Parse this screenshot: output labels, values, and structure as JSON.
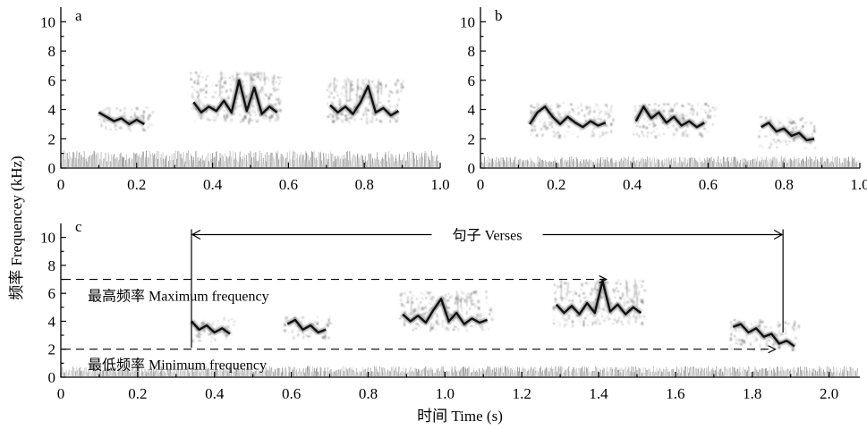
{
  "chart_data": [
    {
      "panel": "a",
      "type": "spectrogram",
      "xlim": [
        0,
        1.0
      ],
      "ylim": [
        0,
        11
      ],
      "x_ticks": [
        "0",
        "0.2",
        "0.4",
        "0.6",
        "0.8",
        "1.0"
      ],
      "y_ticks": [
        "0",
        "2",
        "4",
        "6",
        "8",
        "10"
      ],
      "noise_band_khz": [
        0,
        1.2
      ],
      "notes": [
        {
          "t": [
            0.1,
            0.24
          ],
          "f": [
            2.6,
            4.2
          ],
          "contour": [
            [
              0.1,
              3.8
            ],
            [
              0.12,
              3.5
            ],
            [
              0.14,
              3.2
            ],
            [
              0.16,
              3.4
            ],
            [
              0.18,
              3.0
            ],
            [
              0.2,
              3.3
            ],
            [
              0.22,
              3.0
            ]
          ]
        },
        {
          "t": [
            0.34,
            0.58
          ],
          "f": [
            3.2,
            6.6
          ],
          "contour": [
            [
              0.35,
              4.5
            ],
            [
              0.37,
              3.8
            ],
            [
              0.39,
              4.2
            ],
            [
              0.41,
              3.9
            ],
            [
              0.43,
              4.6
            ],
            [
              0.45,
              3.8
            ],
            [
              0.47,
              6.0
            ],
            [
              0.49,
              3.9
            ],
            [
              0.51,
              5.5
            ],
            [
              0.53,
              3.7
            ],
            [
              0.55,
              4.2
            ],
            [
              0.57,
              3.8
            ]
          ]
        },
        {
          "t": [
            0.7,
            0.9
          ],
          "f": [
            3.2,
            6.2
          ],
          "contour": [
            [
              0.71,
              4.3
            ],
            [
              0.73,
              3.8
            ],
            [
              0.75,
              4.2
            ],
            [
              0.77,
              3.7
            ],
            [
              0.79,
              4.5
            ],
            [
              0.81,
              5.6
            ],
            [
              0.83,
              3.8
            ],
            [
              0.85,
              4.1
            ],
            [
              0.87,
              3.6
            ],
            [
              0.89,
              3.9
            ]
          ]
        }
      ]
    },
    {
      "panel": "b",
      "type": "spectrogram",
      "xlim": [
        0,
        1.0
      ],
      "ylim": [
        0,
        11
      ],
      "x_ticks": [
        "0",
        "0.2",
        "0.4",
        "0.6",
        "0.8",
        "1.0"
      ],
      "y_ticks": [
        "0",
        "2",
        "4",
        "6",
        "8",
        "10"
      ],
      "noise_band_khz": [
        0,
        0.8
      ],
      "notes": [
        {
          "t": [
            0.13,
            0.35
          ],
          "f": [
            2.2,
            4.5
          ],
          "contour": [
            [
              0.13,
              3.0
            ],
            [
              0.15,
              3.8
            ],
            [
              0.17,
              4.2
            ],
            [
              0.19,
              3.5
            ],
            [
              0.21,
              3.0
            ],
            [
              0.23,
              3.5
            ],
            [
              0.25,
              3.1
            ],
            [
              0.27,
              2.8
            ],
            [
              0.29,
              3.2
            ],
            [
              0.31,
              2.9
            ],
            [
              0.33,
              3.1
            ]
          ]
        },
        {
          "t": [
            0.4,
            0.62
          ],
          "f": [
            2.2,
            4.5
          ],
          "contour": [
            [
              0.41,
              3.2
            ],
            [
              0.43,
              4.2
            ],
            [
              0.45,
              3.4
            ],
            [
              0.47,
              3.8
            ],
            [
              0.49,
              3.1
            ],
            [
              0.51,
              3.5
            ],
            [
              0.53,
              2.9
            ],
            [
              0.55,
              3.2
            ],
            [
              0.57,
              2.8
            ],
            [
              0.59,
              3.1
            ]
          ]
        },
        {
          "t": [
            0.73,
            0.88
          ],
          "f": [
            1.4,
            3.6
          ],
          "contour": [
            [
              0.74,
              2.8
            ],
            [
              0.76,
              3.1
            ],
            [
              0.78,
              2.5
            ],
            [
              0.8,
              2.7
            ],
            [
              0.82,
              2.2
            ],
            [
              0.84,
              2.4
            ],
            [
              0.86,
              1.9
            ],
            [
              0.88,
              2.0
            ]
          ]
        }
      ]
    },
    {
      "panel": "c",
      "type": "spectrogram",
      "xlim": [
        0,
        2.08
      ],
      "ylim": [
        0,
        11
      ],
      "x_ticks": [
        "0",
        "0.2",
        "0.4",
        "0.6",
        "0.8",
        "1.0",
        "1.2",
        "1.4",
        "1.6",
        "1.8",
        "2.0"
      ],
      "y_ticks": [
        "0",
        "2",
        "4",
        "6",
        "8",
        "10"
      ],
      "noise_band_khz": [
        0,
        0.8
      ],
      "notes": [
        {
          "t": [
            0.34,
            0.45
          ],
          "f": [
            2.6,
            4.3
          ],
          "contour": [
            [
              0.34,
              4.0
            ],
            [
              0.36,
              3.4
            ],
            [
              0.38,
              3.7
            ],
            [
              0.4,
              3.2
            ],
            [
              0.42,
              3.5
            ],
            [
              0.44,
              3.1
            ]
          ]
        },
        {
          "t": [
            0.58,
            0.7
          ],
          "f": [
            2.8,
            4.4
          ],
          "contour": [
            [
              0.59,
              3.8
            ],
            [
              0.61,
              4.1
            ],
            [
              0.63,
              3.4
            ],
            [
              0.65,
              3.7
            ],
            [
              0.67,
              3.2
            ],
            [
              0.69,
              3.4
            ]
          ]
        },
        {
          "t": [
            0.88,
            1.12
          ],
          "f": [
            3.4,
            6.2
          ],
          "contour": [
            [
              0.89,
              4.5
            ],
            [
              0.91,
              4.0
            ],
            [
              0.93,
              4.4
            ],
            [
              0.95,
              3.9
            ],
            [
              0.97,
              4.8
            ],
            [
              0.99,
              5.6
            ],
            [
              1.01,
              4.0
            ],
            [
              1.03,
              4.6
            ],
            [
              1.05,
              3.8
            ],
            [
              1.07,
              4.2
            ],
            [
              1.09,
              3.9
            ],
            [
              1.11,
              4.1
            ]
          ]
        },
        {
          "t": [
            1.28,
            1.52
          ],
          "f": [
            3.8,
            7.0
          ],
          "contour": [
            [
              1.29,
              5.2
            ],
            [
              1.31,
              4.6
            ],
            [
              1.33,
              5.1
            ],
            [
              1.35,
              4.5
            ],
            [
              1.37,
              5.3
            ],
            [
              1.39,
              4.6
            ],
            [
              1.41,
              6.9
            ],
            [
              1.43,
              4.7
            ],
            [
              1.45,
              5.2
            ],
            [
              1.47,
              4.5
            ],
            [
              1.49,
              5.0
            ],
            [
              1.51,
              4.6
            ]
          ]
        },
        {
          "t": [
            1.74,
            1.92
          ],
          "f": [
            2.0,
            4.2
          ],
          "contour": [
            [
              1.75,
              3.6
            ],
            [
              1.77,
              3.8
            ],
            [
              1.79,
              3.2
            ],
            [
              1.81,
              3.5
            ],
            [
              1.83,
              2.9
            ],
            [
              1.85,
              3.1
            ],
            [
              1.87,
              2.4
            ],
            [
              1.89,
              2.6
            ],
            [
              1.91,
              2.2
            ]
          ]
        }
      ],
      "annotations": {
        "verses": {
          "label": "句子 Verses",
          "t_start": 0.34,
          "t_end": 1.88
        },
        "max_frequency": {
          "label": "最高频率 Maximum frequency",
          "f_khz": 7.0,
          "t_end": 1.42
        },
        "min_frequency": {
          "label": "最低频率 Minimum frequency",
          "f_khz": 2.0,
          "t_end": 1.86
        }
      }
    }
  ],
  "ylabel": "频率 Frequencey (kHz)",
  "xlabel": "时间 Time (s)"
}
